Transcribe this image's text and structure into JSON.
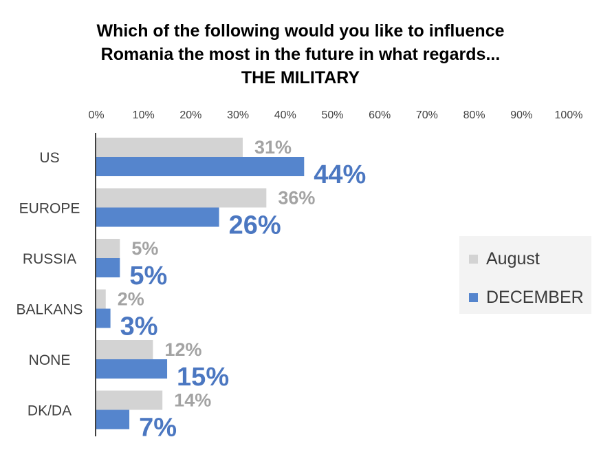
{
  "chart_data": {
    "type": "bar",
    "orientation": "horizontal",
    "title_lines": [
      "Which of the following would you like to influence",
      "Romania the most in the future in what regards...",
      "THE MILITARY"
    ],
    "categories": [
      "US",
      "EUROPE",
      "RUSSIA",
      "BALKANS",
      "NONE",
      "DK/DA"
    ],
    "series": [
      {
        "name": "August",
        "values": [
          31,
          36,
          5,
          2,
          12,
          14
        ],
        "labels": [
          "31%",
          "36%",
          "5%",
          "2%",
          "12%",
          "14%"
        ],
        "color": "#d3d3d3",
        "label_color": "#a3a3a3"
      },
      {
        "name": "DECEMBER",
        "values": [
          44,
          26,
          5,
          3,
          15,
          7
        ],
        "labels": [
          "44%",
          "26%",
          "5%",
          "3%",
          "15%",
          "7%"
        ],
        "color": "#5585cd",
        "label_color": "#4b77c1"
      }
    ],
    "xlim": [
      0,
      100
    ],
    "xticks": [
      "0%",
      "10%",
      "20%",
      "30%",
      "40%",
      "50%",
      "60%",
      "70%",
      "80%",
      "90%",
      "100%"
    ],
    "xaxis_position": "top",
    "legend_position": "right",
    "grid": false
  }
}
